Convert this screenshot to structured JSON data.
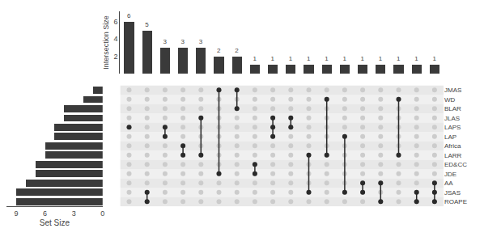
{
  "chart_data": [
    {
      "type": "bar",
      "orientation": "horizontal",
      "categories": [
        "JMAS",
        "WD",
        "BLAR",
        "JLAS",
        "LAPS",
        "LAP",
        "Africa",
        "LARR",
        "ED&CC",
        "JDE",
        "AA",
        "JSAS",
        "ROAPE"
      ],
      "values": [
        1,
        2,
        4,
        4,
        5,
        5,
        6,
        6,
        7,
        7,
        8,
        9,
        9
      ],
      "color": "#3a3a3a",
      "xlabel": "Set Size",
      "xlim": [
        10,
        0
      ],
      "xticks": [
        9,
        6,
        3,
        0
      ],
      "grid": false,
      "tick_labels": "x"
    },
    {
      "type": "bar",
      "values": [
        6,
        5,
        3,
        3,
        3,
        2,
        2,
        1,
        1,
        1,
        1,
        1,
        1,
        1,
        1,
        1,
        1,
        1
      ],
      "color": "#3a3a3a",
      "ylabel": "Intersection Size",
      "ylim": [
        0,
        7.2
      ],
      "yticks": [
        2,
        4,
        6
      ],
      "data_labels": true,
      "grid": false,
      "tick_labels": "y"
    },
    {
      "type": "matrix",
      "categories": [
        "JMAS",
        "WD",
        "BLAR",
        "JLAS",
        "LAPS",
        "LAP",
        "Africa",
        "LARR",
        "ED&CC",
        "JDE",
        "AA",
        "JSAS",
        "ROAPE"
      ],
      "intersections": [
        [
          4
        ],
        [
          11,
          12
        ],
        [
          4,
          5
        ],
        [
          6,
          7
        ],
        [
          3,
          7
        ],
        [
          0,
          9
        ],
        [
          0,
          2
        ],
        [
          8,
          9
        ],
        [
          3,
          4,
          5
        ],
        [
          3,
          4
        ],
        [
          7,
          11
        ],
        [
          1,
          7
        ],
        [
          5,
          11
        ],
        [
          10,
          11
        ],
        [
          10,
          12
        ],
        [
          1,
          7
        ],
        [
          11,
          12
        ],
        [
          10,
          11,
          12
        ]
      ],
      "color": "#2a2a2a",
      "grid": false,
      "tick_labels": "y"
    }
  ]
}
